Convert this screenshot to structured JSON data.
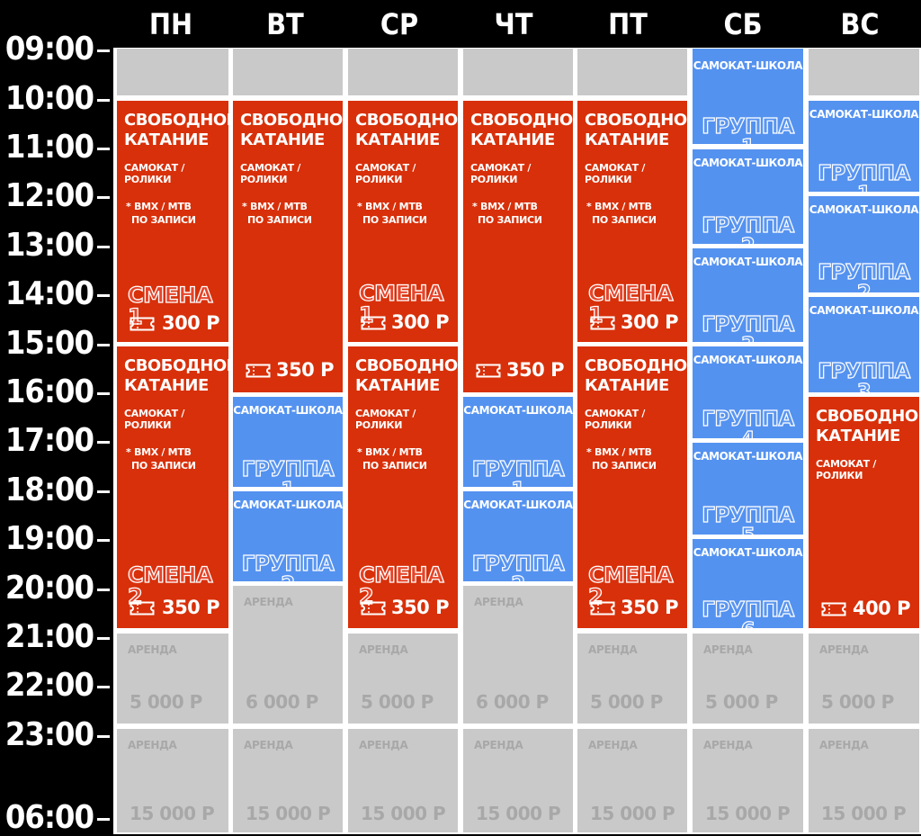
{
  "days": [
    "ПН",
    "ВТ",
    "СР",
    "ЧТ",
    "ПТ",
    "СБ",
    "ВС"
  ],
  "times": [
    "09:00",
    "10:00",
    "11:00",
    "12:00",
    "13:00",
    "14:00",
    "15:00",
    "16:00",
    "17:00",
    "18:00",
    "19:00",
    "20:00",
    "21:00",
    "22:00",
    "23:00",
    "06:00"
  ],
  "labels": {
    "free_line1": "СВОБОДНОЕ",
    "free_line2": "КАТАНИЕ",
    "equipment": "САМОКАТ / РОЛИКИ",
    "note_line1": "* BMX / MTB",
    "note_line2": "ПО ЗАПИСИ",
    "shift1": "СМЕНА 1",
    "shift2": "СМЕНА 2",
    "school": "САМОКАТ-ШКОЛА",
    "group1": "ГРУППА 1",
    "group2": "ГРУППА 2",
    "group3": "ГРУППА 3",
    "group4": "ГРУППА 4",
    "group5": "ГРУППА 5",
    "group6": "ГРУППА 6",
    "rent": "АРЕНДА"
  },
  "prices": {
    "p300": "300 Р",
    "p350": "350 Р",
    "p400": "400 Р",
    "p5000": "5 000 Р",
    "p6000": "6 000 Р",
    "p15000": "15 000 Р"
  },
  "colors": {
    "session": "#d8300a",
    "school": "#5492f0",
    "rent": "#c9c9c9",
    "background": "#000000"
  }
}
